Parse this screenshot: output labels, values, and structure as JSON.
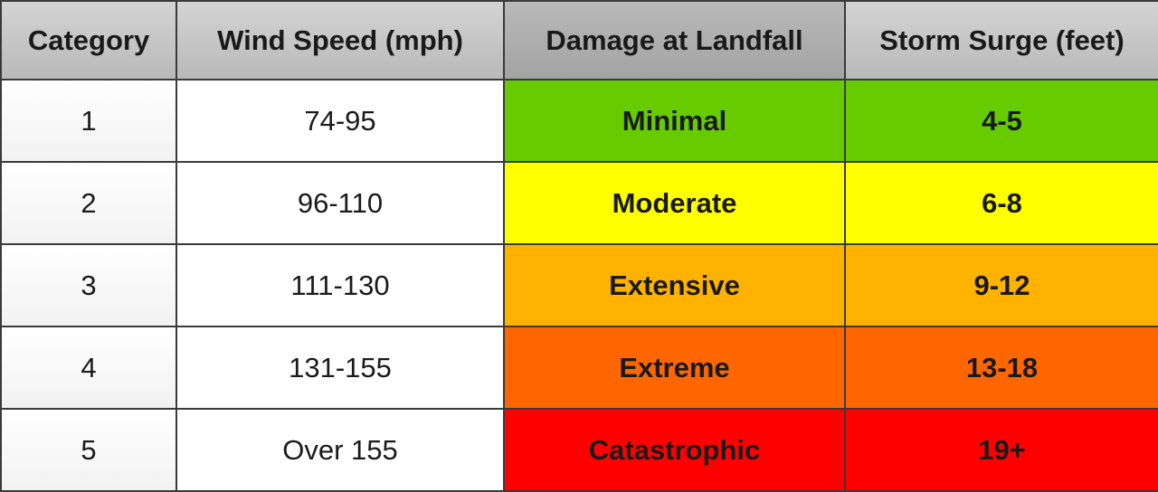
{
  "headers": [
    "Category",
    "Wind Speed (mph)",
    "Damage at Landfall",
    "Storm Surge (feet)"
  ],
  "rows": [
    {
      "category": "1",
      "wind": "74-95",
      "damage": "Minimal",
      "surge": "4-5",
      "color": "#66cc00"
    },
    {
      "category": "2",
      "wind": "96-110",
      "damage": "Moderate",
      "surge": "6-8",
      "color": "#ffff00"
    },
    {
      "category": "3",
      "wind": "111-130",
      "damage": "Extensive",
      "surge": "9-12",
      "color": "#ffb300"
    },
    {
      "category": "4",
      "wind": "131-155",
      "damage": "Extreme",
      "surge": "13-18",
      "color": "#ff6600"
    },
    {
      "category": "5",
      "wind": "Over 155",
      "damage": "Catastrophic",
      "surge": "19+",
      "color": "#ff0000"
    }
  ]
}
